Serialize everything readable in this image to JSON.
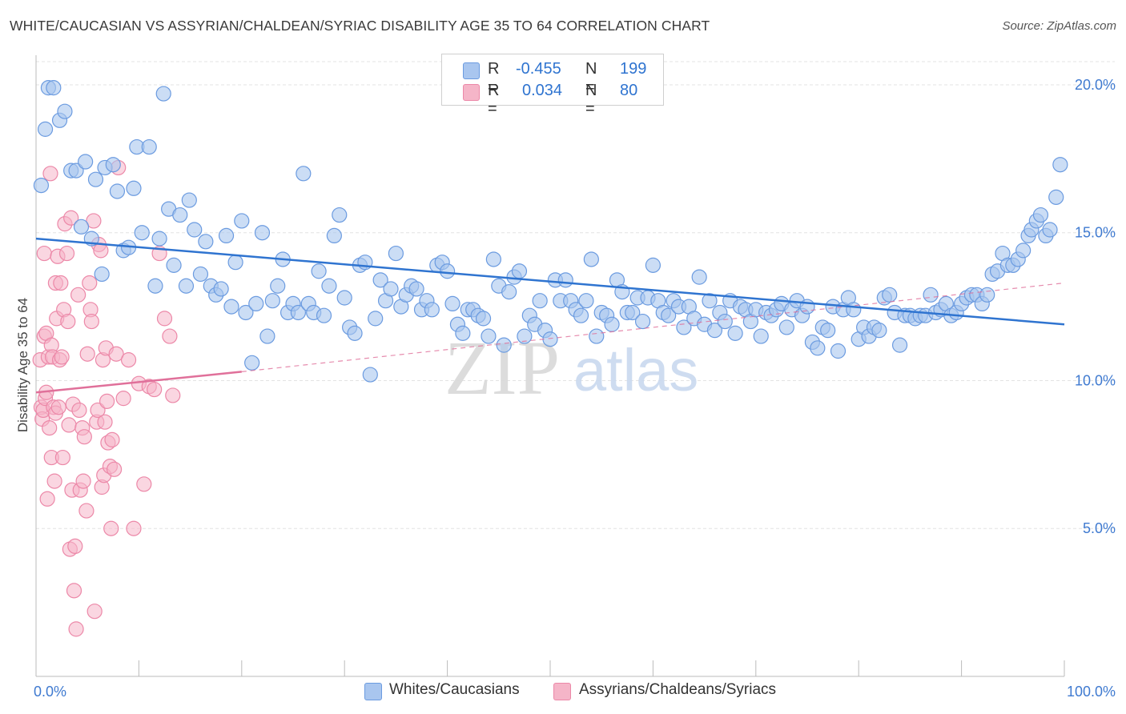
{
  "title": "WHITE/CAUCASIAN VS ASSYRIAN/CHALDEAN/SYRIAC DISABILITY AGE 35 TO 64 CORRELATION CHART",
  "source": "Source: ZipAtlas.com",
  "watermark": {
    "zip": "ZIP",
    "atlas": "atlas"
  },
  "legend": {
    "r_label": "R =",
    "n_label": "N =",
    "rows": [
      {
        "r": "-0.455",
        "n": "199"
      },
      {
        "r": "0.034",
        "n": "80"
      }
    ]
  },
  "colors": {
    "blue_fill": "#a9c6ef",
    "blue_stroke": "#6b9be0",
    "blue_line": "#2f74d0",
    "pink_fill": "#f5b5c8",
    "pink_stroke": "#ec88a8",
    "pink_line": "#e0709a",
    "tick_text": "#3f7ad0"
  },
  "chart_data": {
    "type": "scatter",
    "title": "WHITE/CAUCASIAN VS ASSYRIAN/CHALDEAN/SYRIAC DISABILITY AGE 35 TO 64 CORRELATION CHART",
    "xlabel": "",
    "ylabel": "Disability Age 35 to 64",
    "xlim": [
      0,
      100
    ],
    "ylim": [
      0,
      21
    ],
    "x_tick_labels": [
      "0.0%",
      "100.0%"
    ],
    "y_ticks": [
      5,
      10,
      15,
      20
    ],
    "y_tick_labels": [
      "5.0%",
      "10.0%",
      "15.0%",
      "20.0%"
    ],
    "grid": true,
    "legend_position": "bottom",
    "series": [
      {
        "name": "Whites/Caucasians",
        "trend": {
          "x": [
            0,
            100
          ],
          "y": [
            14.8,
            11.9
          ]
        },
        "points": [
          [
            0.5,
            16.6
          ],
          [
            0.9,
            18.5
          ],
          [
            1.2,
            19.9
          ],
          [
            1.7,
            19.9
          ],
          [
            2.3,
            18.8
          ],
          [
            2.8,
            19.1
          ],
          [
            3.4,
            17.1
          ],
          [
            3.9,
            17.1
          ],
          [
            4.4,
            15.2
          ],
          [
            4.8,
            17.4
          ],
          [
            5.4,
            14.8
          ],
          [
            5.8,
            16.8
          ],
          [
            6.4,
            13.6
          ],
          [
            6.7,
            17.2
          ],
          [
            7.5,
            17.3
          ],
          [
            7.9,
            16.4
          ],
          [
            8.5,
            14.4
          ],
          [
            9.0,
            14.5
          ],
          [
            9.5,
            16.5
          ],
          [
            9.8,
            17.9
          ],
          [
            10.3,
            15.0
          ],
          [
            11.0,
            17.9
          ],
          [
            11.6,
            13.2
          ],
          [
            12.0,
            14.8
          ],
          [
            12.4,
            19.7
          ],
          [
            12.9,
            15.8
          ],
          [
            13.4,
            13.9
          ],
          [
            14.0,
            15.6
          ],
          [
            14.6,
            13.2
          ],
          [
            14.9,
            16.1
          ],
          [
            15.4,
            15.1
          ],
          [
            16.0,
            13.6
          ],
          [
            16.5,
            14.7
          ],
          [
            17.0,
            13.2
          ],
          [
            17.5,
            12.9
          ],
          [
            18.0,
            13.1
          ],
          [
            18.5,
            14.9
          ],
          [
            19.0,
            12.5
          ],
          [
            19.4,
            14.0
          ],
          [
            20.0,
            15.4
          ],
          [
            20.4,
            12.3
          ],
          [
            21.0,
            10.6
          ],
          [
            21.4,
            12.6
          ],
          [
            22.0,
            15.0
          ],
          [
            22.5,
            11.5
          ],
          [
            23.0,
            12.7
          ],
          [
            23.5,
            13.2
          ],
          [
            24.0,
            14.1
          ],
          [
            24.5,
            12.3
          ],
          [
            25.0,
            12.6
          ],
          [
            25.5,
            12.3
          ],
          [
            26.0,
            17.0
          ],
          [
            26.5,
            12.6
          ],
          [
            27.0,
            12.3
          ],
          [
            27.5,
            13.7
          ],
          [
            28.0,
            12.2
          ],
          [
            28.5,
            13.2
          ],
          [
            29.0,
            14.9
          ],
          [
            29.5,
            15.6
          ],
          [
            30.0,
            12.8
          ],
          [
            30.5,
            11.8
          ],
          [
            31.0,
            11.6
          ],
          [
            31.5,
            13.9
          ],
          [
            32.0,
            14.0
          ],
          [
            32.5,
            10.2
          ],
          [
            33.0,
            12.1
          ],
          [
            33.5,
            13.4
          ],
          [
            34.0,
            12.7
          ],
          [
            34.5,
            13.1
          ],
          [
            35.0,
            14.3
          ],
          [
            35.5,
            12.5
          ],
          [
            36.0,
            12.9
          ],
          [
            36.5,
            13.2
          ],
          [
            37.0,
            13.1
          ],
          [
            37.5,
            12.4
          ],
          [
            38.0,
            12.7
          ],
          [
            38.5,
            12.4
          ],
          [
            39.0,
            13.9
          ],
          [
            39.5,
            14.0
          ],
          [
            40.0,
            13.7
          ],
          [
            40.5,
            12.6
          ],
          [
            41.0,
            11.9
          ],
          [
            41.5,
            11.6
          ],
          [
            42.0,
            12.4
          ],
          [
            42.5,
            12.4
          ],
          [
            43.0,
            12.2
          ],
          [
            43.5,
            12.1
          ],
          [
            44.0,
            11.5
          ],
          [
            44.5,
            14.1
          ],
          [
            45.0,
            13.2
          ],
          [
            45.5,
            11.2
          ],
          [
            46.0,
            13.0
          ],
          [
            46.5,
            13.5
          ],
          [
            47.0,
            13.7
          ],
          [
            47.5,
            11.5
          ],
          [
            48.0,
            12.2
          ],
          [
            48.5,
            11.9
          ],
          [
            49.0,
            12.7
          ],
          [
            49.5,
            11.7
          ],
          [
            50.0,
            11.4
          ],
          [
            50.5,
            13.4
          ],
          [
            51.0,
            12.7
          ],
          [
            51.5,
            13.4
          ],
          [
            52.0,
            12.7
          ],
          [
            52.5,
            12.4
          ],
          [
            53.0,
            12.2
          ],
          [
            53.5,
            12.7
          ],
          [
            54.0,
            14.1
          ],
          [
            54.5,
            11.5
          ],
          [
            55.0,
            12.3
          ],
          [
            55.5,
            12.2
          ],
          [
            56.0,
            11.9
          ],
          [
            56.5,
            13.4
          ],
          [
            57.0,
            13.0
          ],
          [
            57.5,
            12.3
          ],
          [
            58.0,
            12.3
          ],
          [
            58.5,
            12.8
          ],
          [
            59.0,
            12.0
          ],
          [
            59.5,
            12.8
          ],
          [
            60.0,
            13.9
          ],
          [
            60.5,
            12.7
          ],
          [
            61.0,
            12.3
          ],
          [
            61.5,
            12.2
          ],
          [
            62.0,
            12.7
          ],
          [
            62.5,
            12.5
          ],
          [
            63.0,
            11.8
          ],
          [
            63.5,
            12.5
          ],
          [
            64.0,
            12.1
          ],
          [
            64.5,
            13.5
          ],
          [
            65.0,
            11.9
          ],
          [
            65.5,
            12.7
          ],
          [
            66.0,
            11.7
          ],
          [
            66.5,
            12.3
          ],
          [
            67.0,
            12.0
          ],
          [
            67.5,
            12.7
          ],
          [
            68.0,
            11.6
          ],
          [
            68.5,
            12.5
          ],
          [
            69.0,
            12.4
          ],
          [
            69.5,
            12.0
          ],
          [
            70.0,
            12.4
          ],
          [
            70.5,
            11.5
          ],
          [
            71.0,
            12.3
          ],
          [
            71.5,
            12.2
          ],
          [
            72.0,
            12.4
          ],
          [
            72.5,
            12.6
          ],
          [
            73.0,
            11.8
          ],
          [
            73.5,
            12.4
          ],
          [
            74.0,
            12.7
          ],
          [
            74.5,
            12.2
          ],
          [
            75.0,
            12.5
          ],
          [
            75.5,
            11.3
          ],
          [
            76.0,
            11.1
          ],
          [
            76.5,
            11.8
          ],
          [
            77.0,
            11.7
          ],
          [
            77.5,
            12.5
          ],
          [
            78.0,
            11.0
          ],
          [
            78.5,
            12.4
          ],
          [
            79.0,
            12.8
          ],
          [
            79.5,
            12.4
          ],
          [
            80.0,
            11.4
          ],
          [
            80.5,
            11.8
          ],
          [
            81.0,
            11.5
          ],
          [
            81.5,
            11.8
          ],
          [
            82.0,
            11.7
          ],
          [
            82.5,
            12.8
          ],
          [
            83.0,
            12.9
          ],
          [
            83.5,
            12.3
          ],
          [
            84.0,
            11.2
          ],
          [
            84.5,
            12.2
          ],
          [
            85.0,
            12.2
          ],
          [
            85.5,
            12.1
          ],
          [
            86.0,
            12.2
          ],
          [
            86.5,
            12.2
          ],
          [
            87.0,
            12.9
          ],
          [
            87.5,
            12.3
          ],
          [
            88.0,
            12.4
          ],
          [
            88.5,
            12.6
          ],
          [
            89.0,
            12.2
          ],
          [
            89.5,
            12.3
          ],
          [
            90.0,
            12.6
          ],
          [
            90.5,
            12.8
          ],
          [
            91.0,
            12.9
          ],
          [
            91.5,
            12.9
          ],
          [
            92.0,
            12.6
          ],
          [
            92.5,
            12.9
          ],
          [
            93.0,
            13.6
          ],
          [
            93.5,
            13.7
          ],
          [
            94.0,
            14.3
          ],
          [
            94.5,
            13.9
          ],
          [
            95.0,
            13.9
          ],
          [
            95.5,
            14.1
          ],
          [
            96.0,
            14.4
          ],
          [
            96.5,
            14.9
          ],
          [
            96.8,
            15.1
          ],
          [
            97.3,
            15.4
          ],
          [
            97.7,
            15.6
          ],
          [
            98.2,
            14.9
          ],
          [
            98.6,
            15.1
          ],
          [
            99.2,
            16.2
          ],
          [
            99.6,
            17.3
          ]
        ]
      },
      {
        "name": "Assyrians/Chaldeans/Syriacs",
        "trend": {
          "x": [
            0,
            20
          ],
          "y": [
            9.6,
            10.3
          ]
        },
        "trend_extension": {
          "x": [
            20,
            100
          ],
          "y": [
            10.3,
            13.3
          ]
        },
        "points": [
          [
            0.4,
            10.7
          ],
          [
            0.5,
            9.1
          ],
          [
            0.6,
            8.7
          ],
          [
            0.7,
            9.0
          ],
          [
            0.8,
            11.5
          ],
          [
            0.8,
            14.3
          ],
          [
            0.9,
            9.4
          ],
          [
            1.0,
            11.6
          ],
          [
            1.0,
            9.6
          ],
          [
            1.1,
            6.0
          ],
          [
            1.2,
            10.8
          ],
          [
            1.3,
            8.4
          ],
          [
            1.4,
            17.0
          ],
          [
            1.5,
            7.4
          ],
          [
            1.5,
            11.2
          ],
          [
            1.6,
            10.8
          ],
          [
            1.7,
            9.1
          ],
          [
            1.8,
            6.6
          ],
          [
            1.9,
            13.3
          ],
          [
            1.9,
            8.9
          ],
          [
            2.0,
            12.1
          ],
          [
            2.1,
            14.2
          ],
          [
            2.2,
            9.1
          ],
          [
            2.3,
            10.7
          ],
          [
            2.4,
            13.3
          ],
          [
            2.5,
            10.8
          ],
          [
            2.6,
            7.4
          ],
          [
            2.7,
            12.4
          ],
          [
            2.8,
            15.3
          ],
          [
            3.0,
            14.3
          ],
          [
            3.1,
            12.0
          ],
          [
            3.2,
            8.5
          ],
          [
            3.3,
            4.3
          ],
          [
            3.4,
            15.5
          ],
          [
            3.5,
            6.3
          ],
          [
            3.6,
            9.2
          ],
          [
            3.7,
            2.9
          ],
          [
            3.8,
            4.4
          ],
          [
            3.9,
            1.6
          ],
          [
            4.1,
            12.9
          ],
          [
            4.2,
            9.0
          ],
          [
            4.3,
            6.3
          ],
          [
            4.5,
            8.4
          ],
          [
            4.6,
            6.6
          ],
          [
            4.7,
            8.1
          ],
          [
            4.9,
            5.6
          ],
          [
            5.0,
            10.9
          ],
          [
            5.2,
            13.3
          ],
          [
            5.3,
            12.4
          ],
          [
            5.4,
            12.0
          ],
          [
            5.6,
            15.4
          ],
          [
            5.7,
            2.2
          ],
          [
            5.9,
            8.6
          ],
          [
            6.0,
            9.0
          ],
          [
            6.1,
            14.6
          ],
          [
            6.3,
            14.4
          ],
          [
            6.4,
            6.4
          ],
          [
            6.5,
            10.7
          ],
          [
            6.6,
            6.8
          ],
          [
            6.7,
            8.6
          ],
          [
            6.8,
            11.1
          ],
          [
            6.9,
            9.3
          ],
          [
            7.0,
            7.9
          ],
          [
            7.2,
            7.1
          ],
          [
            7.3,
            5.0
          ],
          [
            7.4,
            8.0
          ],
          [
            7.6,
            7.0
          ],
          [
            7.8,
            10.9
          ],
          [
            8.0,
            17.2
          ],
          [
            8.5,
            9.4
          ],
          [
            9.0,
            10.7
          ],
          [
            9.5,
            5.0
          ],
          [
            10.0,
            9.9
          ],
          [
            10.5,
            6.5
          ],
          [
            11.0,
            9.8
          ],
          [
            11.5,
            9.7
          ],
          [
            12.0,
            14.3
          ],
          [
            12.5,
            12.1
          ],
          [
            13.0,
            11.5
          ],
          [
            13.3,
            9.5
          ]
        ]
      }
    ]
  },
  "bottom_legend": [
    "Whites/Caucasians",
    "Assyrians/Chaldeans/Syriacs"
  ]
}
